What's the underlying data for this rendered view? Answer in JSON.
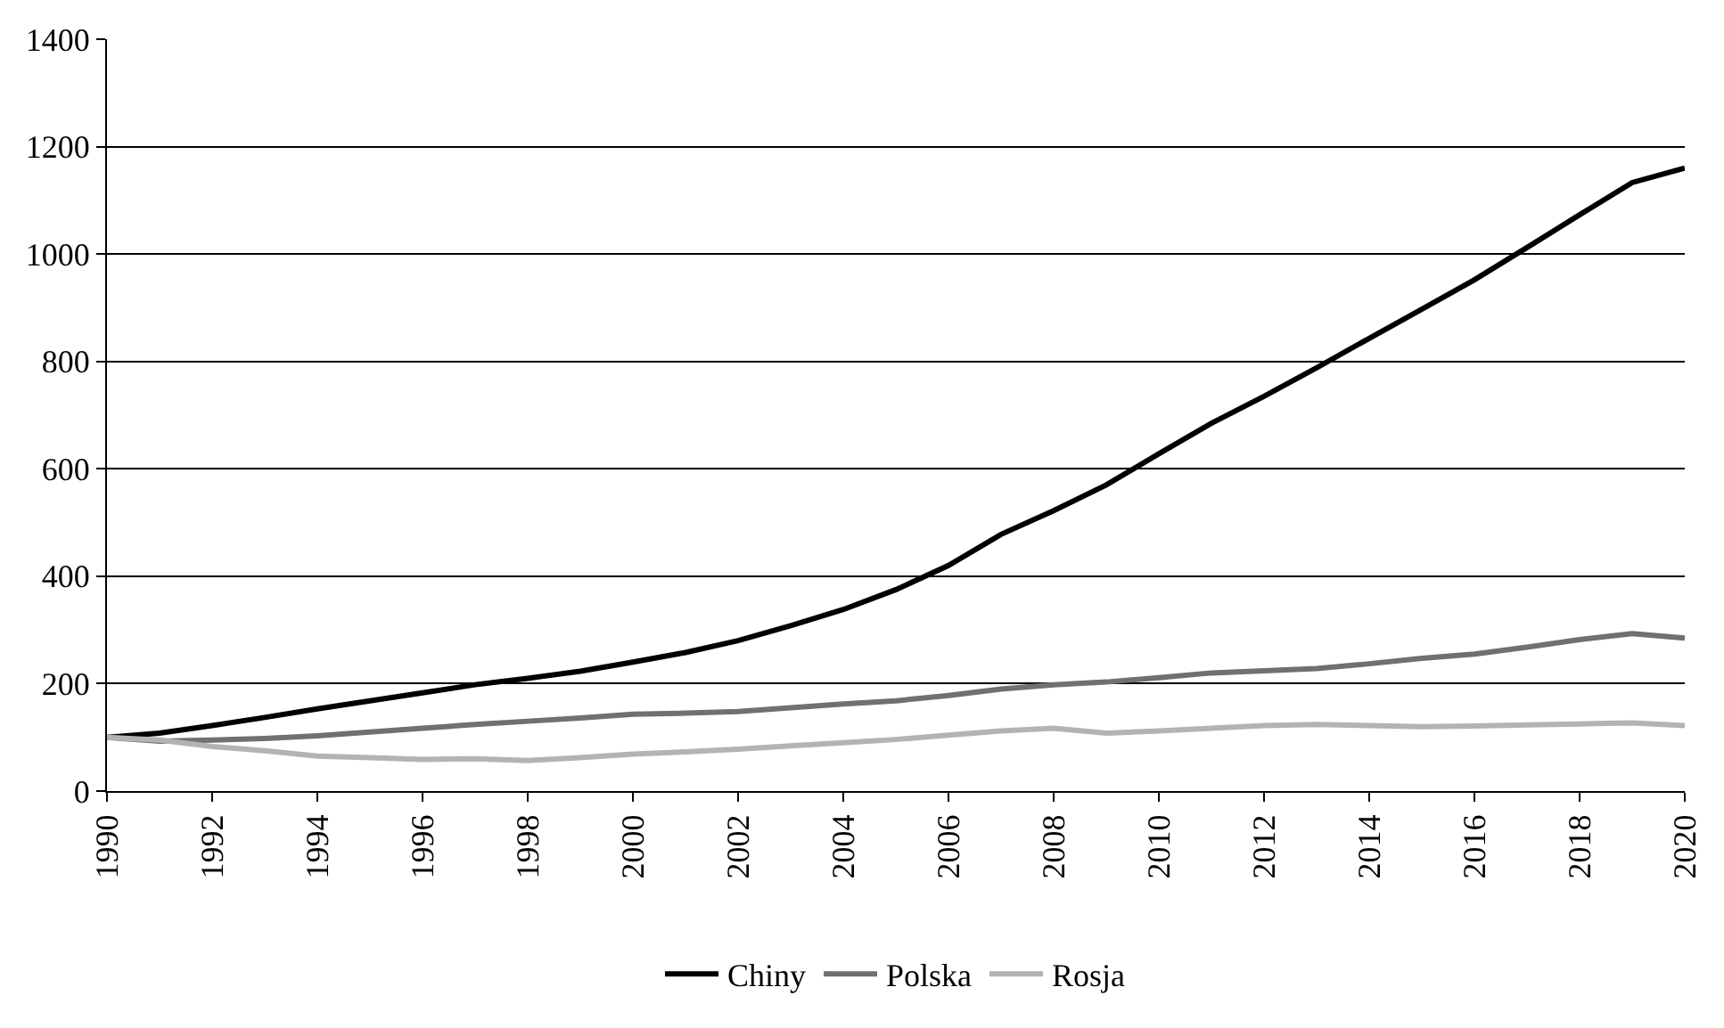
{
  "chart_data": {
    "type": "line",
    "x": [
      1990,
      1991,
      1992,
      1993,
      1994,
      1995,
      1996,
      1997,
      1998,
      1999,
      2000,
      2001,
      2002,
      2003,
      2004,
      2005,
      2006,
      2007,
      2008,
      2009,
      2010,
      2011,
      2012,
      2013,
      2014,
      2015,
      2016,
      2017,
      2018,
      2019,
      2020
    ],
    "series": [
      {
        "name": "Chiny",
        "color": "#000000",
        "values": [
          100,
          108,
          122,
          137,
          153,
          168,
          183,
          198,
          210,
          223,
          240,
          258,
          280,
          308,
          338,
          375,
          420,
          478,
          522,
          570,
          628,
          685,
          735,
          788,
          843,
          897,
          952,
          1012,
          1073,
          1133,
          1160
        ]
      },
      {
        "name": "Polska",
        "color": "#707070",
        "values": [
          100,
          93,
          95,
          98,
          103,
          110,
          117,
          124,
          130,
          136,
          143,
          145,
          148,
          155,
          162,
          168,
          178,
          190,
          198,
          203,
          211,
          220,
          224,
          228,
          237,
          247,
          255,
          268,
          282,
          293,
          285
        ]
      },
      {
        "name": "Rosja",
        "color": "#b3b3b3",
        "values": [
          100,
          95,
          83,
          75,
          65,
          62,
          59,
          60,
          57,
          62,
          69,
          73,
          78,
          84,
          90,
          96,
          104,
          112,
          117,
          108,
          112,
          117,
          122,
          124,
          122,
          120,
          121,
          123,
          125,
          127,
          122
        ]
      }
    ],
    "xlim": [
      1990,
      2020
    ],
    "xticks": [
      1990,
      1992,
      1994,
      1996,
      1998,
      2000,
      2002,
      2004,
      2006,
      2008,
      2010,
      2012,
      2014,
      2016,
      2018,
      2020
    ],
    "ylim": [
      0,
      1400
    ],
    "yticks": [
      0,
      200,
      400,
      600,
      800,
      1000,
      1200,
      1400
    ],
    "grid": "y",
    "legend": "bottom",
    "marker": "none",
    "line_style": "solid"
  }
}
